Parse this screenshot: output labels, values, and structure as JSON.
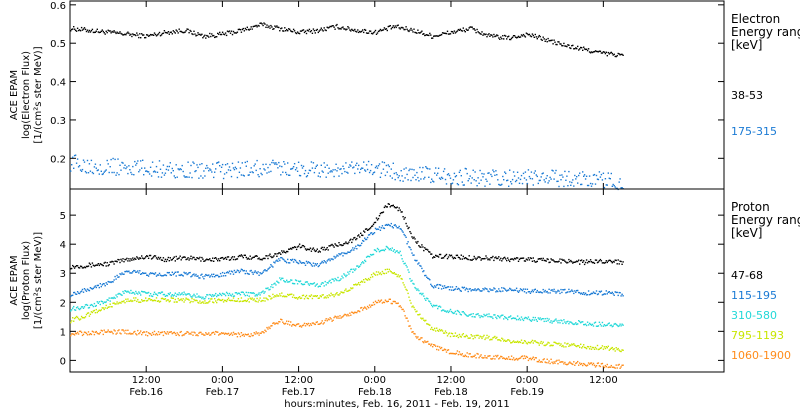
{
  "chart_data": [
    {
      "type": "scatter",
      "ylabel_lines": [
        "ACE EPAM",
        "log(Electron Flux)",
        "[1/(cm²s ster MeV)]"
      ],
      "legend_title_lines": [
        "Electron",
        "Energy ranges",
        "[keV]"
      ],
      "ylim": [
        0.12,
        0.61
      ],
      "yticks": [
        0.2,
        0.3,
        0.4,
        0.5,
        0.6
      ],
      "ytick_labels": [
        "0.2",
        "0.3",
        "0.4",
        "0.5",
        "0.6"
      ],
      "series": [
        {
          "name": "38-53",
          "color": "#000000",
          "x_hours": [
            0,
            3,
            6,
            9,
            12,
            15,
            18,
            21,
            24,
            27,
            30,
            33,
            36,
            39,
            42,
            45,
            48,
            51,
            54,
            57,
            60,
            63,
            66,
            69,
            72,
            75,
            78,
            81,
            84,
            87
          ],
          "y": [
            0.54,
            0.535,
            0.53,
            0.525,
            0.52,
            0.53,
            0.535,
            0.52,
            0.525,
            0.535,
            0.55,
            0.54,
            0.53,
            0.535,
            0.545,
            0.535,
            0.53,
            0.545,
            0.535,
            0.52,
            0.53,
            0.54,
            0.52,
            0.515,
            0.525,
            0.51,
            0.495,
            0.485,
            0.475,
            0.47
          ]
        },
        {
          "name": "175-315",
          "color": "#1a7ad4",
          "x_hours": [
            0,
            6,
            12,
            18,
            24,
            30,
            36,
            42,
            48,
            54,
            60,
            66,
            72,
            78,
            84,
            87
          ],
          "y": [
            0.19,
            0.18,
            0.175,
            0.17,
            0.17,
            0.175,
            0.175,
            0.17,
            0.175,
            0.16,
            0.155,
            0.15,
            0.15,
            0.15,
            0.145,
            0.14
          ]
        }
      ]
    },
    {
      "type": "scatter",
      "ylabel_lines": [
        "ACE EPAM",
        "log(Proton Flux)",
        "[1/(cm²s ster MeV)]"
      ],
      "legend_title_lines": [
        "Proton",
        "Energy ranges",
        "[keV]"
      ],
      "ylim": [
        -0.4,
        5.9
      ],
      "yticks": [
        0,
        1,
        2,
        3,
        4,
        5
      ],
      "ytick_labels": [
        "0",
        "1",
        "2",
        "3",
        "4",
        "5"
      ],
      "series": [
        {
          "name": "47-68",
          "color": "#000000",
          "x_hours": [
            0,
            3,
            6,
            9,
            12,
            15,
            18,
            21,
            24,
            27,
            30,
            33,
            36,
            39,
            42,
            45,
            48,
            50,
            52,
            54,
            57,
            60,
            63,
            66,
            69,
            72,
            75,
            78,
            81,
            84,
            87
          ],
          "y": [
            3.25,
            3.3,
            3.35,
            3.5,
            3.6,
            3.5,
            3.55,
            3.5,
            3.5,
            3.6,
            3.55,
            3.7,
            3.95,
            3.8,
            4.0,
            4.2,
            4.8,
            5.4,
            5.2,
            4.2,
            3.6,
            3.6,
            3.55,
            3.55,
            3.5,
            3.5,
            3.45,
            3.45,
            3.4,
            3.45,
            3.4
          ]
        },
        {
          "name": "115-195",
          "color": "#1a7ad4",
          "x_hours": [
            0,
            3,
            6,
            9,
            12,
            15,
            18,
            21,
            24,
            27,
            30,
            33,
            36,
            39,
            42,
            45,
            48,
            50,
            52,
            54,
            57,
            60,
            63,
            66,
            69,
            72,
            75,
            78,
            81,
            84,
            87
          ],
          "y": [
            2.3,
            2.5,
            2.7,
            3.1,
            3.0,
            3.0,
            3.0,
            2.9,
            3.0,
            3.1,
            3.0,
            3.5,
            3.4,
            3.3,
            3.6,
            3.9,
            4.5,
            4.7,
            4.6,
            3.6,
            2.6,
            2.5,
            2.45,
            2.45,
            2.45,
            2.4,
            2.4,
            2.4,
            2.35,
            2.35,
            2.3
          ]
        },
        {
          "name": "310-580",
          "color": "#22d8d8",
          "x_hours": [
            0,
            3,
            6,
            9,
            12,
            15,
            18,
            21,
            24,
            27,
            30,
            33,
            36,
            39,
            42,
            45,
            48,
            50,
            52,
            54,
            57,
            60,
            63,
            66,
            69,
            72,
            75,
            78,
            81,
            84,
            87
          ],
          "y": [
            1.8,
            1.9,
            2.1,
            2.4,
            2.3,
            2.3,
            2.3,
            2.2,
            2.3,
            2.3,
            2.3,
            2.8,
            2.7,
            2.6,
            2.8,
            3.2,
            3.8,
            3.9,
            3.7,
            2.6,
            1.9,
            1.7,
            1.6,
            1.55,
            1.5,
            1.45,
            1.4,
            1.35,
            1.3,
            1.25,
            1.2
          ]
        },
        {
          "name": "795-1193",
          "color": "#c8e600",
          "x_hours": [
            0,
            3,
            6,
            9,
            12,
            15,
            18,
            21,
            24,
            27,
            30,
            33,
            36,
            39,
            42,
            45,
            48,
            50,
            52,
            54,
            57,
            60,
            63,
            66,
            69,
            72,
            75,
            78,
            81,
            84,
            87
          ],
          "y": [
            1.4,
            1.6,
            1.9,
            2.1,
            2.1,
            2.1,
            2.1,
            2.05,
            2.1,
            2.1,
            2.1,
            2.3,
            2.2,
            2.2,
            2.3,
            2.6,
            3.0,
            3.1,
            2.9,
            1.8,
            1.1,
            0.9,
            0.85,
            0.8,
            0.7,
            0.65,
            0.6,
            0.55,
            0.5,
            0.45,
            0.4
          ]
        },
        {
          "name": "1060-1900",
          "color": "#ff8c1a",
          "x_hours": [
            0,
            3,
            6,
            9,
            12,
            15,
            18,
            21,
            24,
            27,
            30,
            33,
            36,
            39,
            42,
            45,
            48,
            50,
            52,
            54,
            57,
            60,
            63,
            66,
            69,
            72,
            75,
            78,
            81,
            84,
            87
          ],
          "y": [
            0.95,
            0.95,
            1.0,
            1.0,
            0.95,
            0.95,
            0.95,
            0.95,
            0.95,
            0.9,
            0.95,
            1.4,
            1.2,
            1.3,
            1.5,
            1.7,
            2.0,
            2.1,
            1.9,
            0.9,
            0.5,
            0.3,
            0.2,
            0.15,
            0.1,
            0.1,
            0.0,
            -0.05,
            -0.1,
            -0.15,
            -0.2
          ]
        }
      ]
    }
  ],
  "x_axis": {
    "xlim_hours": [
      0,
      103
    ],
    "ticks_hours": [
      12,
      24,
      36,
      48,
      60,
      72,
      84
    ],
    "tick_time": [
      "12:00",
      "0:00",
      "12:00",
      "0:00",
      "12:00",
      "0:00",
      "12:00"
    ],
    "tick_date": [
      "Feb.16",
      "Feb.17",
      "Feb.17",
      "Feb.18",
      "Feb.18",
      "Feb.19",
      ""
    ],
    "xlabel": "hours:minutes, Feb. 16, 2011 - Feb. 19, 2011"
  }
}
